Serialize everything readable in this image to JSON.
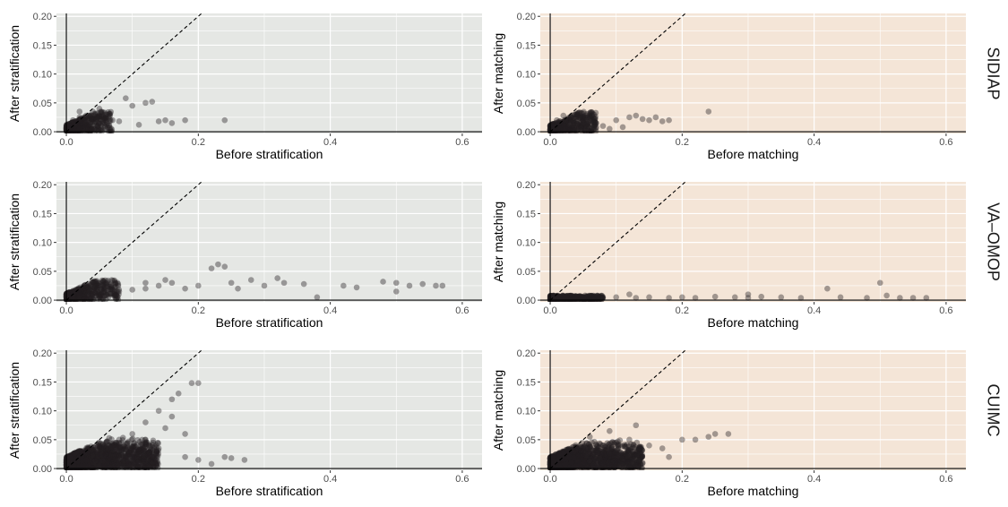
{
  "colors": {
    "stratification_panel_bg": "#e5e7e4",
    "matching_panel_bg": "#f4e5d7",
    "grid_line": "#ffffff",
    "point": "#231f20",
    "axis_line": "#000000",
    "reference_line": "#000000"
  },
  "chart_data": [
    {
      "type": "scatter",
      "database": "SIDIAP",
      "method": "stratification",
      "xlabel": "Before stratification",
      "ylabel": "After stratification",
      "xlim": [
        -0.015,
        0.63
      ],
      "ylim": [
        -0.003,
        0.205
      ],
      "xticks": [
        "0.0",
        "0.2",
        "0.4",
        "0.6"
      ],
      "yticks": [
        "0.00",
        "0.05",
        "0.10",
        "0.15",
        "0.20"
      ],
      "reference_line": "y = x (dashed)",
      "grid": true,
      "points": [
        [
          0.005,
          0.01
        ],
        [
          0.01,
          0.02
        ],
        [
          0.02,
          0.025
        ],
        [
          0.03,
          0.028
        ],
        [
          0.04,
          0.035
        ],
        [
          0.05,
          0.015
        ],
        [
          0.06,
          0.03
        ],
        [
          0.07,
          0.02
        ],
        [
          0.08,
          0.018
        ],
        [
          0.09,
          0.058
        ],
        [
          0.1,
          0.045
        ],
        [
          0.11,
          0.012
        ],
        [
          0.12,
          0.05
        ],
        [
          0.13,
          0.052
        ],
        [
          0.14,
          0.018
        ],
        [
          0.15,
          0.02
        ],
        [
          0.16,
          0.015
        ],
        [
          0.18,
          0.02
        ],
        [
          0.24,
          0.02
        ],
        [
          0.03,
          0.005
        ],
        [
          0.05,
          0.04
        ],
        [
          0.02,
          0.035
        ]
      ]
    },
    {
      "type": "scatter",
      "database": "SIDIAP",
      "method": "matching",
      "xlabel": "Before matching",
      "ylabel": "After matching",
      "xlim": [
        -0.015,
        0.63
      ],
      "ylim": [
        -0.003,
        0.205
      ],
      "xticks": [
        "0.0",
        "0.2",
        "0.4",
        "0.6"
      ],
      "yticks": [
        "0.00",
        "0.05",
        "0.10",
        "0.15",
        "0.20"
      ],
      "reference_line": "y = x (dashed)",
      "grid": true,
      "points": [
        [
          0.005,
          0.01
        ],
        [
          0.01,
          0.02
        ],
        [
          0.02,
          0.028
        ],
        [
          0.03,
          0.025
        ],
        [
          0.04,
          0.03
        ],
        [
          0.05,
          0.015
        ],
        [
          0.06,
          0.02
        ],
        [
          0.08,
          0.01
        ],
        [
          0.1,
          0.02
        ],
        [
          0.12,
          0.025
        ],
        [
          0.13,
          0.028
        ],
        [
          0.14,
          0.022
        ],
        [
          0.15,
          0.02
        ],
        [
          0.16,
          0.025
        ],
        [
          0.17,
          0.018
        ],
        [
          0.18,
          0.02
        ],
        [
          0.24,
          0.035
        ],
        [
          0.09,
          0.005
        ],
        [
          0.11,
          0.008
        ],
        [
          0.07,
          0.015
        ]
      ]
    },
    {
      "type": "scatter",
      "database": "VA–OMOP",
      "method": "stratification",
      "xlabel": "Before stratification",
      "ylabel": "After stratification",
      "xlim": [
        -0.015,
        0.63
      ],
      "ylim": [
        -0.003,
        0.205
      ],
      "xticks": [
        "0.0",
        "0.2",
        "0.4",
        "0.6"
      ],
      "yticks": [
        "0.00",
        "0.05",
        "0.10",
        "0.15",
        "0.20"
      ],
      "reference_line": "y = x (dashed)",
      "grid": true,
      "points": [
        [
          0.01,
          0.005
        ],
        [
          0.02,
          0.008
        ],
        [
          0.04,
          0.01
        ],
        [
          0.06,
          0.012
        ],
        [
          0.08,
          0.015
        ],
        [
          0.1,
          0.018
        ],
        [
          0.12,
          0.02
        ],
        [
          0.14,
          0.025
        ],
        [
          0.16,
          0.03
        ],
        [
          0.18,
          0.02
        ],
        [
          0.2,
          0.025
        ],
        [
          0.22,
          0.055
        ],
        [
          0.23,
          0.062
        ],
        [
          0.24,
          0.058
        ],
        [
          0.25,
          0.03
        ],
        [
          0.26,
          0.02
        ],
        [
          0.28,
          0.035
        ],
        [
          0.3,
          0.025
        ],
        [
          0.32,
          0.038
        ],
        [
          0.33,
          0.03
        ],
        [
          0.36,
          0.028
        ],
        [
          0.38,
          0.005
        ],
        [
          0.42,
          0.025
        ],
        [
          0.44,
          0.022
        ],
        [
          0.48,
          0.032
        ],
        [
          0.5,
          0.03
        ],
        [
          0.52,
          0.025
        ],
        [
          0.54,
          0.028
        ],
        [
          0.56,
          0.025
        ],
        [
          0.57,
          0.025
        ],
        [
          0.5,
          0.015
        ],
        [
          0.15,
          0.035
        ],
        [
          0.12,
          0.03
        ]
      ]
    },
    {
      "type": "scatter",
      "database": "VA–OMOP",
      "method": "matching",
      "xlabel": "Before matching",
      "ylabel": "After matching",
      "xlim": [
        -0.015,
        0.63
      ],
      "ylim": [
        -0.003,
        0.205
      ],
      "xticks": [
        "0.0",
        "0.2",
        "0.4",
        "0.6"
      ],
      "yticks": [
        "0.00",
        "0.05",
        "0.10",
        "0.15",
        "0.20"
      ],
      "reference_line": "y = x (dashed)",
      "grid": true,
      "points": [
        [
          0.005,
          0.005
        ],
        [
          0.02,
          0.005
        ],
        [
          0.05,
          0.005
        ],
        [
          0.08,
          0.004
        ],
        [
          0.1,
          0.005
        ],
        [
          0.13,
          0.004
        ],
        [
          0.15,
          0.005
        ],
        [
          0.18,
          0.004
        ],
        [
          0.2,
          0.005
        ],
        [
          0.22,
          0.004
        ],
        [
          0.25,
          0.006
        ],
        [
          0.28,
          0.005
        ],
        [
          0.3,
          0.004
        ],
        [
          0.32,
          0.006
        ],
        [
          0.35,
          0.005
        ],
        [
          0.38,
          0.004
        ],
        [
          0.42,
          0.02
        ],
        [
          0.44,
          0.005
        ],
        [
          0.48,
          0.004
        ],
        [
          0.5,
          0.03
        ],
        [
          0.51,
          0.008
        ],
        [
          0.53,
          0.004
        ],
        [
          0.55,
          0.004
        ],
        [
          0.57,
          0.004
        ],
        [
          0.12,
          0.01
        ],
        [
          0.3,
          0.01
        ]
      ]
    },
    {
      "type": "scatter",
      "database": "CUIMC",
      "method": "stratification",
      "xlabel": "Before stratification",
      "ylabel": "After stratification",
      "xlim": [
        -0.015,
        0.63
      ],
      "ylim": [
        -0.003,
        0.205
      ],
      "xticks": [
        "0.0",
        "0.2",
        "0.4",
        "0.6"
      ],
      "yticks": [
        "0.00",
        "0.05",
        "0.10",
        "0.15",
        "0.20"
      ],
      "reference_line": "y = x (dashed)",
      "grid": true,
      "points": [
        [
          0.01,
          0.01
        ],
        [
          0.02,
          0.02
        ],
        [
          0.04,
          0.03
        ],
        [
          0.06,
          0.045
        ],
        [
          0.08,
          0.05
        ],
        [
          0.1,
          0.06
        ],
        [
          0.12,
          0.08
        ],
        [
          0.14,
          0.1
        ],
        [
          0.16,
          0.12
        ],
        [
          0.17,
          0.13
        ],
        [
          0.19,
          0.148
        ],
        [
          0.2,
          0.148
        ],
        [
          0.16,
          0.09
        ],
        [
          0.15,
          0.07
        ],
        [
          0.12,
          0.05
        ],
        [
          0.18,
          0.02
        ],
        [
          0.2,
          0.015
        ],
        [
          0.22,
          0.008
        ],
        [
          0.24,
          0.02
        ],
        [
          0.25,
          0.018
        ],
        [
          0.27,
          0.015
        ],
        [
          0.1,
          0.02
        ],
        [
          0.05,
          0.005
        ],
        [
          0.14,
          0.035
        ],
        [
          0.18,
          0.06
        ]
      ]
    },
    {
      "type": "scatter",
      "database": "CUIMC",
      "method": "matching",
      "xlabel": "Before matching",
      "ylabel": "After matching",
      "xlim": [
        -0.015,
        0.63
      ],
      "ylim": [
        -0.003,
        0.205
      ],
      "xticks": [
        "0.0",
        "0.2",
        "0.4",
        "0.6"
      ],
      "yticks": [
        "0.00",
        "0.05",
        "0.10",
        "0.15",
        "0.20"
      ],
      "reference_line": "y = x (dashed)",
      "grid": true,
      "points": [
        [
          0.01,
          0.01
        ],
        [
          0.03,
          0.02
        ],
        [
          0.05,
          0.03
        ],
        [
          0.08,
          0.04
        ],
        [
          0.1,
          0.045
        ],
        [
          0.12,
          0.05
        ],
        [
          0.13,
          0.075
        ],
        [
          0.15,
          0.04
        ],
        [
          0.17,
          0.035
        ],
        [
          0.2,
          0.05
        ],
        [
          0.22,
          0.05
        ],
        [
          0.24,
          0.055
        ],
        [
          0.25,
          0.06
        ],
        [
          0.27,
          0.06
        ],
        [
          0.18,
          0.02
        ],
        [
          0.14,
          0.01
        ],
        [
          0.06,
          0.055
        ],
        [
          0.09,
          0.065
        ]
      ]
    }
  ]
}
